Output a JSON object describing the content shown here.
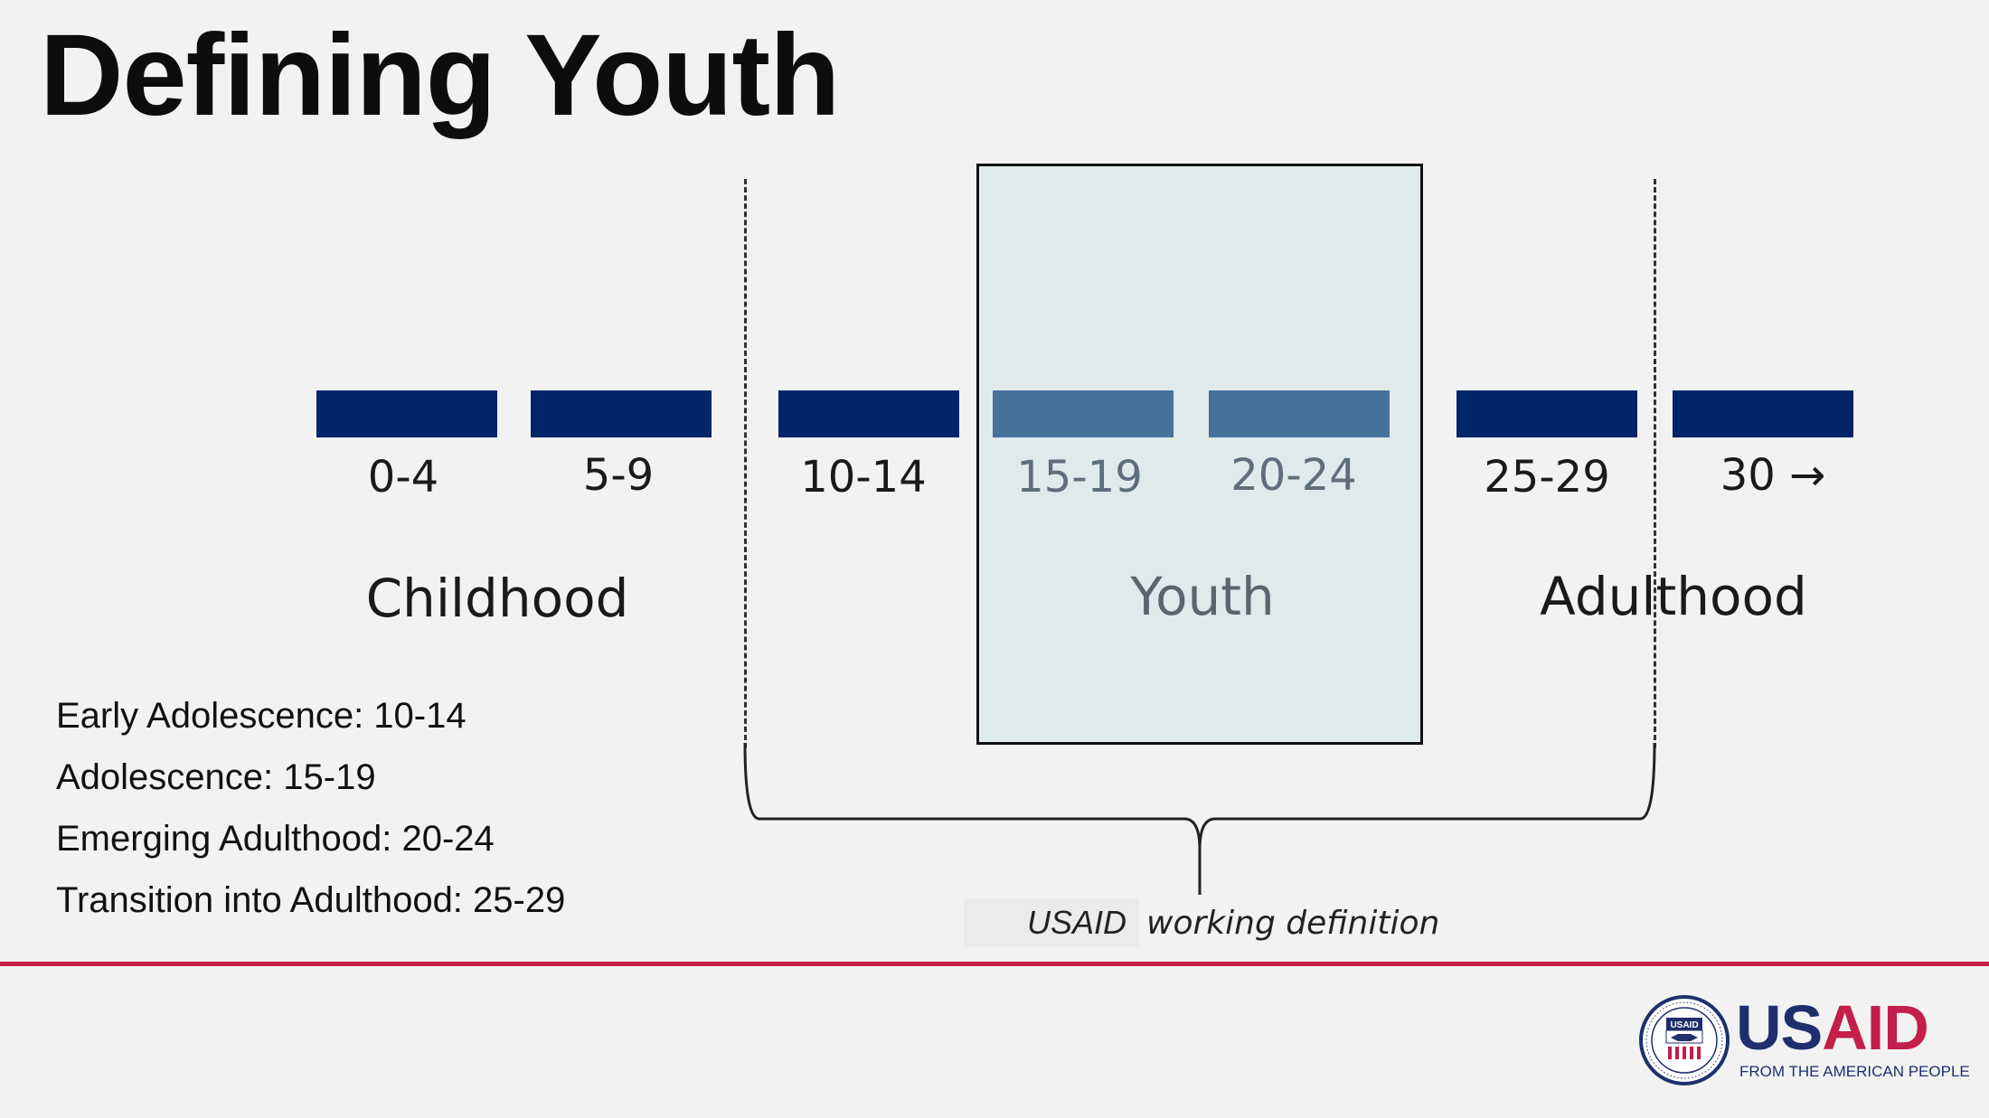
{
  "title": "Defining Youth",
  "age_groups": [
    {
      "label": "0-4",
      "highlight": false
    },
    {
      "label": "5-9",
      "highlight": false
    },
    {
      "label": "10-14",
      "highlight": false
    },
    {
      "label": "15-19",
      "highlight": true
    },
    {
      "label": "20-24",
      "highlight": true
    },
    {
      "label": "25-29",
      "highlight": false
    },
    {
      "label": "30 →",
      "highlight": false
    }
  ],
  "phases": {
    "childhood": "Childhood",
    "youth": "Youth",
    "adulthood": "Adulthood"
  },
  "definitions": [
    "Early Adolescence: 10-14",
    "Adolescence: 15-19",
    "Emerging Adulthood: 20-24",
    "Transition into Adulthood: 25-29"
  ],
  "working_definition": {
    "org": "USAID",
    "text": "working definition"
  },
  "logo": {
    "word_us": "US",
    "word_aid": "AID",
    "tagline": "FROM THE AMERICAN PEOPLE",
    "seal_text": "USAID"
  },
  "colors": {
    "bar": "#012569",
    "bar_highlight": "#46719b",
    "youth_box": "#dfeaeb",
    "accent_red": "#c41e4b",
    "logo_blue": "#1f2f6d"
  }
}
